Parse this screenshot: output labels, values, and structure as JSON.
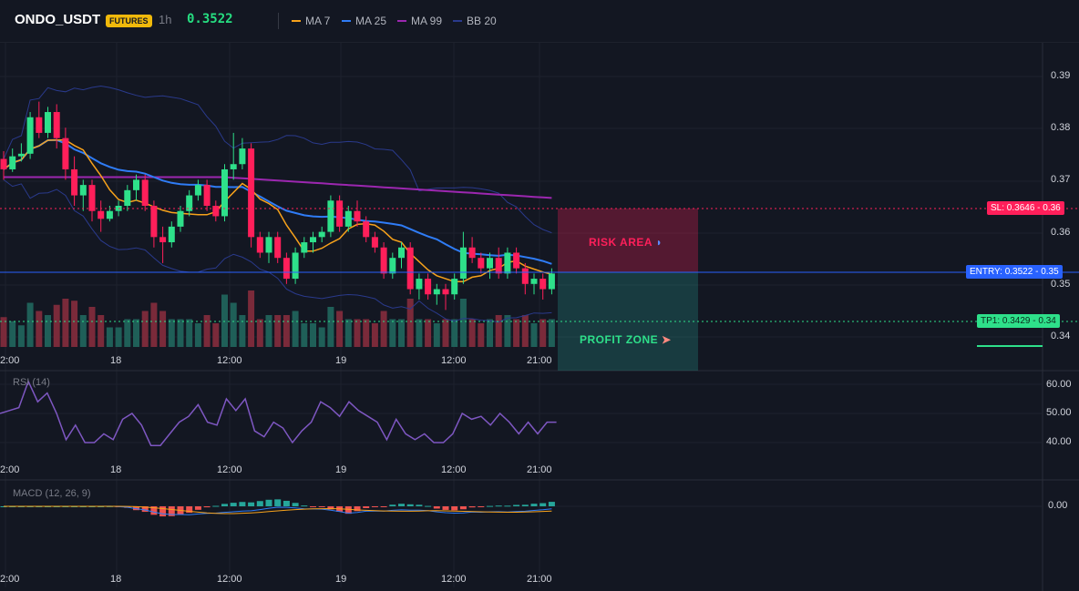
{
  "header": {
    "symbol": "ONDO_USDT",
    "badge": "FUTURES",
    "interval": "1h",
    "price": "0.3522",
    "legend": [
      {
        "label": "MA 7",
        "color": "#f7a21b"
      },
      {
        "label": "MA 25",
        "color": "#2f7cf6"
      },
      {
        "label": "MA 99",
        "color": "#9c27b0"
      },
      {
        "label": "BB 20",
        "color": "#2a3a8c"
      }
    ]
  },
  "colors": {
    "up": "#26a69a",
    "upBright": "#2ee08a",
    "down": "#ff1f5a",
    "grid": "#1e222d",
    "bg": "#131722"
  },
  "price_axis": [
    "0.39",
    "0.38",
    "0.37",
    "0.36",
    "0.35",
    "0.34"
  ],
  "price_axis_values": [
    0.39,
    0.38,
    0.37,
    0.36,
    0.35,
    0.34
  ],
  "time_axis": [
    "2:00",
    "18",
    "12:00",
    "19",
    "12:00",
    "21:00"
  ],
  "levels": {
    "sl": {
      "label": "SL: 0.3646",
      "axis": "0.36",
      "value": 0.3646
    },
    "entry": {
      "label": "ENTRY: 0.3522",
      "axis": "0.35",
      "value": 0.3522
    },
    "tp1": {
      "label": "TP1: 0.3429",
      "axis": "0.34",
      "value": 0.3429
    }
  },
  "zones": {
    "risk": "RISK AREA",
    "profit": "PROFIT ZONE"
  },
  "rsi": {
    "label": "RSI (14)",
    "axis": [
      "60.00",
      "50.00",
      "40.00"
    ],
    "axis_values": [
      60,
      50,
      40
    ],
    "values": [
      50,
      51,
      52,
      61,
      54,
      57,
      50,
      41,
      46,
      40,
      40,
      43,
      41,
      48,
      50,
      46,
      39,
      39,
      43,
      47,
      49,
      53,
      47,
      46,
      55,
      51,
      55,
      44,
      42,
      47,
      45,
      40,
      44,
      47,
      54,
      52,
      49,
      54,
      51,
      49,
      47,
      41,
      48,
      43,
      41,
      43,
      40,
      40,
      43,
      50,
      48,
      49,
      46,
      50,
      47,
      43,
      47,
      43,
      47,
      47
    ],
    "times": [
      0,
      3,
      6,
      9,
      12,
      15,
      18,
      21,
      24,
      27,
      30,
      33,
      36,
      39,
      42,
      45,
      48,
      51,
      54,
      57,
      60,
      63,
      66,
      69,
      72,
      75,
      78,
      81,
      84,
      87,
      90,
      93,
      96,
      99,
      102,
      105,
      108,
      111,
      114,
      117,
      120,
      123,
      126,
      129,
      132,
      135,
      138,
      141,
      144,
      147,
      150,
      153,
      156,
      159,
      162,
      165,
      168,
      171,
      174,
      177
    ]
  },
  "macd": {
    "label": "MACD (12, 26, 9)",
    "axis": [
      "0.00"
    ],
    "zero": 0
  },
  "chart_data": {
    "type": "candlestick",
    "x_labels": [
      "2:00",
      "18",
      "12:00",
      "19",
      "12:00",
      "21:00"
    ],
    "ohlc": [
      [
        0.374,
        0.3755,
        0.37,
        0.372
      ],
      [
        0.372,
        0.376,
        0.3715,
        0.3745
      ],
      [
        0.3745,
        0.377,
        0.3735,
        0.375
      ],
      [
        0.375,
        0.383,
        0.374,
        0.382
      ],
      [
        0.382,
        0.385,
        0.378,
        0.379
      ],
      [
        0.379,
        0.384,
        0.378,
        0.383
      ],
      [
        0.383,
        0.3845,
        0.376,
        0.378
      ],
      [
        0.378,
        0.38,
        0.37,
        0.372
      ],
      [
        0.372,
        0.3745,
        0.365,
        0.367
      ],
      [
        0.367,
        0.37,
        0.364,
        0.369
      ],
      [
        0.369,
        0.37,
        0.362,
        0.364
      ],
      [
        0.364,
        0.366,
        0.36,
        0.3625
      ],
      [
        0.3625,
        0.365,
        0.362,
        0.364
      ],
      [
        0.364,
        0.366,
        0.363,
        0.365
      ],
      [
        0.365,
        0.369,
        0.364,
        0.368
      ],
      [
        0.368,
        0.371,
        0.366,
        0.37
      ],
      [
        0.37,
        0.371,
        0.364,
        0.365
      ],
      [
        0.365,
        0.366,
        0.357,
        0.359
      ],
      [
        0.359,
        0.361,
        0.354,
        0.358
      ],
      [
        0.358,
        0.362,
        0.357,
        0.361
      ],
      [
        0.361,
        0.365,
        0.36,
        0.364
      ],
      [
        0.364,
        0.368,
        0.363,
        0.367
      ],
      [
        0.367,
        0.37,
        0.366,
        0.369
      ],
      [
        0.369,
        0.37,
        0.364,
        0.365
      ],
      [
        0.365,
        0.366,
        0.362,
        0.363
      ],
      [
        0.363,
        0.373,
        0.362,
        0.372
      ],
      [
        0.372,
        0.379,
        0.37,
        0.373
      ],
      [
        0.373,
        0.378,
        0.372,
        0.376
      ],
      [
        0.376,
        0.377,
        0.357,
        0.359
      ],
      [
        0.359,
        0.36,
        0.355,
        0.356
      ],
      [
        0.356,
        0.36,
        0.354,
        0.359
      ],
      [
        0.359,
        0.36,
        0.354,
        0.355
      ],
      [
        0.355,
        0.356,
        0.35,
        0.351
      ],
      [
        0.351,
        0.357,
        0.35,
        0.356
      ],
      [
        0.356,
        0.359,
        0.355,
        0.358
      ],
      [
        0.358,
        0.36,
        0.356,
        0.359
      ],
      [
        0.359,
        0.361,
        0.358,
        0.36
      ],
      [
        0.36,
        0.367,
        0.359,
        0.366
      ],
      [
        0.366,
        0.367,
        0.36,
        0.361
      ],
      [
        0.361,
        0.365,
        0.36,
        0.364
      ],
      [
        0.364,
        0.366,
        0.361,
        0.362
      ],
      [
        0.362,
        0.363,
        0.358,
        0.359
      ],
      [
        0.359,
        0.36,
        0.356,
        0.357
      ],
      [
        0.357,
        0.358,
        0.351,
        0.352
      ],
      [
        0.352,
        0.356,
        0.351,
        0.355
      ],
      [
        0.355,
        0.358,
        0.353,
        0.357
      ],
      [
        0.357,
        0.358,
        0.348,
        0.349
      ],
      [
        0.349,
        0.352,
        0.347,
        0.351
      ],
      [
        0.351,
        0.352,
        0.347,
        0.348
      ],
      [
        0.348,
        0.35,
        0.346,
        0.349
      ],
      [
        0.349,
        0.35,
        0.345,
        0.348
      ],
      [
        0.348,
        0.352,
        0.347,
        0.351
      ],
      [
        0.351,
        0.36,
        0.35,
        0.357
      ],
      [
        0.357,
        0.359,
        0.354,
        0.355
      ],
      [
        0.355,
        0.356,
        0.352,
        0.353
      ],
      [
        0.353,
        0.356,
        0.351,
        0.355
      ],
      [
        0.355,
        0.357,
        0.351,
        0.352
      ],
      [
        0.352,
        0.357,
        0.351,
        0.356
      ],
      [
        0.356,
        0.357,
        0.352,
        0.353
      ],
      [
        0.353,
        0.354,
        0.348,
        0.35
      ],
      [
        0.35,
        0.352,
        0.348,
        0.351
      ],
      [
        0.351,
        0.352,
        0.347,
        0.349
      ],
      [
        0.349,
        0.353,
        0.348,
        0.352
      ]
    ]
  }
}
